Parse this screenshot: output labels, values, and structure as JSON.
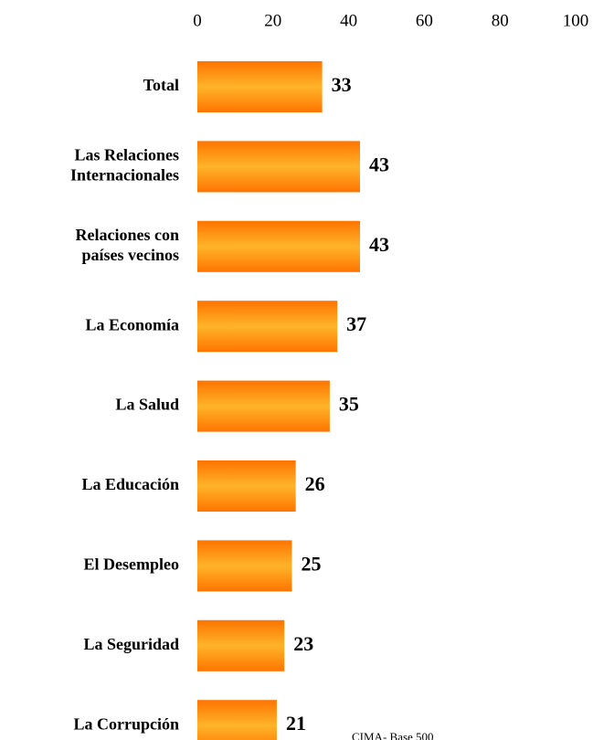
{
  "chart_data": {
    "type": "bar",
    "orientation": "horizontal",
    "categories": [
      "Total",
      "Las Relaciones\nInternacionales",
      "Relaciones con\npaíses vecinos",
      "La Economía",
      "La Salud",
      "La Educación",
      "El Desempleo",
      "La Seguridad",
      "La Corrupción"
    ],
    "values": [
      33,
      43,
      43,
      37,
      35,
      26,
      25,
      23,
      21
    ],
    "color": "#ff8c00",
    "xlim": [
      0,
      100
    ],
    "xticks": [
      0,
      20,
      40,
      60,
      80,
      100
    ],
    "grid": false,
    "note": "CIMA- Base 500"
  }
}
